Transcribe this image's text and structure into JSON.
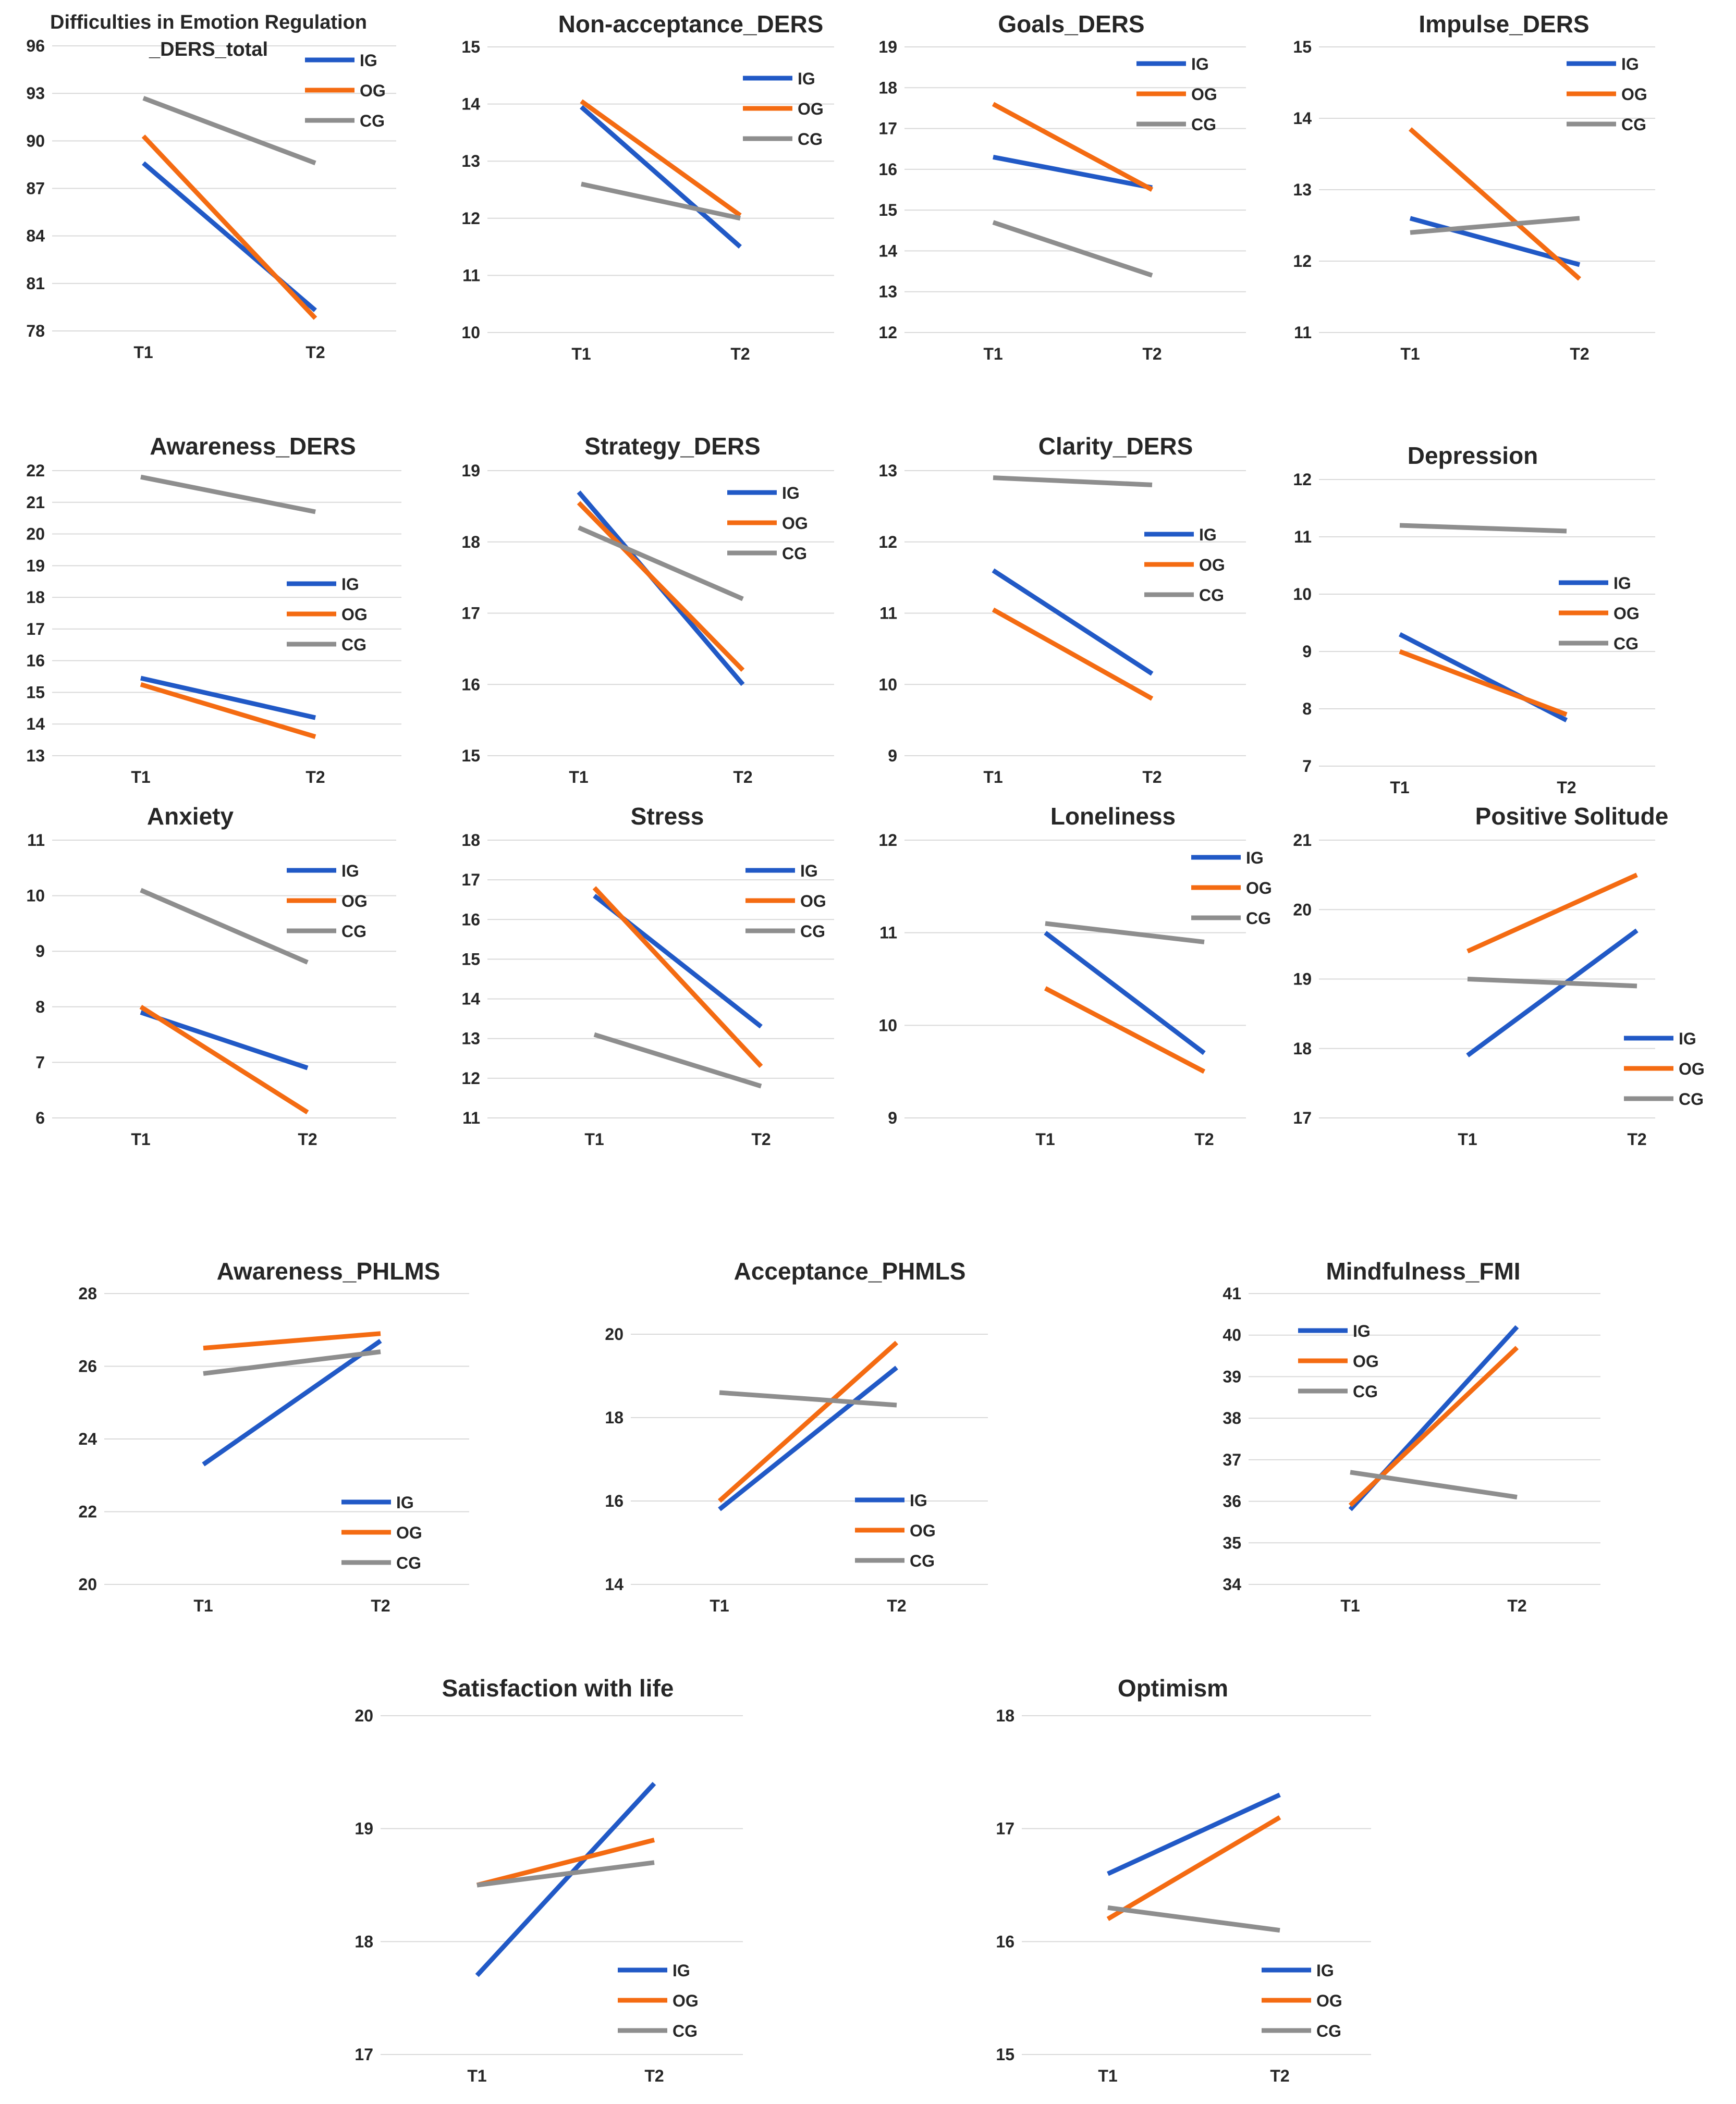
{
  "colors": {
    "IG": "#2159c6",
    "OG": "#f46b12",
    "CG": "#8e8e8e",
    "grid": "#d9d9d9",
    "text": "#262626"
  },
  "chart_data": [
    {
      "type": "line",
      "title": "Difficulties in Emotion Regulation\n_DERS_total",
      "categories": [
        "T1",
        "T2"
      ],
      "ylim": [
        78,
        96
      ],
      "yticks": [
        78,
        81,
        84,
        87,
        90,
        93,
        96
      ],
      "series": [
        {
          "name": "IG",
          "values": [
            88.6,
            79.3
          ]
        },
        {
          "name": "OG",
          "values": [
            90.3,
            78.8
          ]
        },
        {
          "name": "CG",
          "values": [
            92.7,
            88.6
          ]
        }
      ],
      "legend": "top-right"
    },
    {
      "type": "line",
      "title": "Non-acceptance_DERS",
      "categories": [
        "T1",
        "T2"
      ],
      "ylim": [
        10,
        15
      ],
      "yticks": [
        10,
        11,
        12,
        13,
        14,
        15
      ],
      "series": [
        {
          "name": "IG",
          "values": [
            13.95,
            11.5
          ]
        },
        {
          "name": "OG",
          "values": [
            14.05,
            12.05
          ]
        },
        {
          "name": "CG",
          "values": [
            12.6,
            12.0
          ]
        }
      ],
      "legend": "right"
    },
    {
      "type": "line",
      "title": "Goals_DERS",
      "categories": [
        "T1",
        "T2"
      ],
      "ylim": [
        12,
        19
      ],
      "yticks": [
        12,
        13,
        14,
        15,
        16,
        17,
        18,
        19
      ],
      "series": [
        {
          "name": "IG",
          "values": [
            16.3,
            15.55
          ]
        },
        {
          "name": "OG",
          "values": [
            17.6,
            15.5
          ]
        },
        {
          "name": "CG",
          "values": [
            14.7,
            13.4
          ]
        }
      ],
      "legend": "top-right"
    },
    {
      "type": "line",
      "title": "Impulse_DERS",
      "categories": [
        "T1",
        "T2"
      ],
      "ylim": [
        11,
        15
      ],
      "yticks": [
        11,
        12,
        13,
        14,
        15
      ],
      "series": [
        {
          "name": "IG",
          "values": [
            12.6,
            11.95
          ]
        },
        {
          "name": "OG",
          "values": [
            13.85,
            11.75
          ]
        },
        {
          "name": "CG",
          "values": [
            12.4,
            12.6
          ]
        }
      ],
      "legend": "top-right"
    },
    {
      "type": "line",
      "title": "Awareness_DERS",
      "categories": [
        "T1",
        "T2"
      ],
      "ylim": [
        13,
        22
      ],
      "yticks": [
        13,
        14,
        15,
        16,
        17,
        18,
        19,
        20,
        21,
        22
      ],
      "series": [
        {
          "name": "IG",
          "values": [
            15.45,
            14.2
          ]
        },
        {
          "name": "OG",
          "values": [
            15.25,
            13.6
          ]
        },
        {
          "name": "CG",
          "values": [
            21.8,
            20.7
          ]
        }
      ],
      "legend": "right"
    },
    {
      "type": "line",
      "title": "Strategy_DERS",
      "categories": [
        "T1",
        "T2"
      ],
      "ylim": [
        15,
        19
      ],
      "yticks": [
        15,
        16,
        17,
        18,
        19
      ],
      "series": [
        {
          "name": "IG",
          "values": [
            18.7,
            16.0
          ]
        },
        {
          "name": "OG",
          "values": [
            18.55,
            16.2
          ]
        },
        {
          "name": "CG",
          "values": [
            18.2,
            17.2
          ]
        }
      ],
      "legend": "top-right"
    },
    {
      "type": "line",
      "title": "Clarity_DERS",
      "categories": [
        "T1",
        "T2"
      ],
      "ylim": [
        9,
        13
      ],
      "yticks": [
        9,
        10,
        11,
        12,
        13
      ],
      "series": [
        {
          "name": "IG",
          "values": [
            11.6,
            10.15
          ]
        },
        {
          "name": "OG",
          "values": [
            11.05,
            9.8
          ]
        },
        {
          "name": "CG",
          "values": [
            12.9,
            12.8
          ]
        }
      ],
      "legend": "right"
    },
    {
      "type": "line",
      "title": "Depression",
      "categories": [
        "T1",
        "T2"
      ],
      "ylim": [
        7,
        12
      ],
      "yticks": [
        7,
        8,
        9,
        10,
        11,
        12
      ],
      "series": [
        {
          "name": "IG",
          "values": [
            9.3,
            7.8
          ]
        },
        {
          "name": "OG",
          "values": [
            9.0,
            7.9
          ]
        },
        {
          "name": "CG",
          "values": [
            11.2,
            11.1
          ]
        }
      ],
      "legend": "right"
    },
    {
      "type": "line",
      "title": "Anxiety",
      "categories": [
        "T1",
        "T2"
      ],
      "ylim": [
        6,
        11
      ],
      "yticks": [
        6,
        7,
        8,
        9,
        10,
        11
      ],
      "series": [
        {
          "name": "IG",
          "values": [
            7.9,
            6.9
          ]
        },
        {
          "name": "OG",
          "values": [
            8.0,
            6.1
          ]
        },
        {
          "name": "CG",
          "values": [
            10.1,
            8.8
          ]
        }
      ],
      "legend": "top-right"
    },
    {
      "type": "line",
      "title": "Stress",
      "categories": [
        "T1",
        "T2"
      ],
      "ylim": [
        11,
        18
      ],
      "yticks": [
        11,
        12,
        13,
        14,
        15,
        16,
        17,
        18
      ],
      "series": [
        {
          "name": "IG",
          "values": [
            16.6,
            13.3
          ]
        },
        {
          "name": "OG",
          "values": [
            16.8,
            12.3
          ]
        },
        {
          "name": "CG",
          "values": [
            13.1,
            11.8
          ]
        }
      ],
      "legend": "top-right"
    },
    {
      "type": "line",
      "title": "Loneliness",
      "categories": [
        "T1",
        "T2"
      ],
      "ylim": [
        9,
        12
      ],
      "yticks": [
        9,
        10,
        11,
        12
      ],
      "series": [
        {
          "name": "IG",
          "values": [
            11.0,
            9.7
          ]
        },
        {
          "name": "OG",
          "values": [
            10.4,
            9.5
          ]
        },
        {
          "name": "CG",
          "values": [
            11.1,
            10.9
          ]
        }
      ],
      "legend": "top-right"
    },
    {
      "type": "line",
      "title": "Positive Solitude",
      "categories": [
        "T1",
        "T2"
      ],
      "ylim": [
        17,
        21
      ],
      "yticks": [
        17,
        18,
        19,
        20,
        21
      ],
      "series": [
        {
          "name": "IG",
          "values": [
            17.9,
            19.7
          ]
        },
        {
          "name": "OG",
          "values": [
            19.4,
            20.5
          ]
        },
        {
          "name": "CG",
          "values": [
            19.0,
            18.9
          ]
        }
      ],
      "legend": "bottom-right"
    },
    {
      "type": "line",
      "title": "Awareness_PHLMS",
      "categories": [
        "T1",
        "T2"
      ],
      "ylim": [
        20,
        28
      ],
      "yticks": [
        20,
        22,
        24,
        26,
        28
      ],
      "series": [
        {
          "name": "IG",
          "values": [
            23.3,
            26.7
          ]
        },
        {
          "name": "OG",
          "values": [
            26.5,
            26.9
          ]
        },
        {
          "name": "CG",
          "values": [
            25.8,
            26.4
          ]
        }
      ],
      "legend": "bottom-right"
    },
    {
      "type": "line",
      "title": "Acceptance_PHMLS",
      "categories": [
        "T1",
        "T2"
      ],
      "ylim": [
        14,
        20
      ],
      "yticks": [
        14,
        16,
        18,
        20
      ],
      "series": [
        {
          "name": "IG",
          "values": [
            15.8,
            19.2
          ]
        },
        {
          "name": "OG",
          "values": [
            16.0,
            19.8
          ]
        },
        {
          "name": "CG",
          "values": [
            18.6,
            18.3
          ]
        }
      ],
      "legend": "bottom-right"
    },
    {
      "type": "line",
      "title": "Mindfulness_FMI",
      "categories": [
        "T1",
        "T2"
      ],
      "ylim": [
        34,
        41
      ],
      "yticks": [
        34,
        35,
        36,
        37,
        38,
        39,
        40,
        41
      ],
      "series": [
        {
          "name": "IG",
          "values": [
            35.8,
            40.2
          ]
        },
        {
          "name": "OG",
          "values": [
            35.9,
            39.7
          ]
        },
        {
          "name": "CG",
          "values": [
            36.7,
            36.1
          ]
        }
      ],
      "legend": "top-left"
    },
    {
      "type": "line",
      "title": "Satisfaction with life",
      "categories": [
        "T1",
        "T2"
      ],
      "ylim": [
        17,
        20
      ],
      "yticks": [
        17,
        18,
        19,
        20
      ],
      "series": [
        {
          "name": "IG",
          "values": [
            17.7,
            19.4
          ]
        },
        {
          "name": "OG",
          "values": [
            18.5,
            18.9
          ]
        },
        {
          "name": "CG",
          "values": [
            18.5,
            18.7
          ]
        }
      ],
      "legend": "bottom-right"
    },
    {
      "type": "line",
      "title": "Optimism",
      "categories": [
        "T1",
        "T2"
      ],
      "ylim": [
        15,
        18
      ],
      "yticks": [
        15,
        16,
        17,
        18
      ],
      "series": [
        {
          "name": "IG",
          "values": [
            16.6,
            17.3
          ]
        },
        {
          "name": "OG",
          "values": [
            16.2,
            17.1
          ]
        },
        {
          "name": "CG",
          "values": [
            16.3,
            16.1
          ]
        }
      ],
      "legend": "bottom-right"
    }
  ]
}
